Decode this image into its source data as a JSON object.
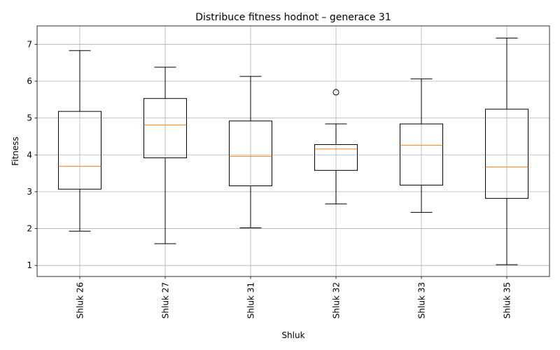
{
  "chart_data": {
    "type": "box",
    "title": "Distribuce fitness hodnot – generace 31",
    "xlabel": "Shluk",
    "ylabel": "Fitness",
    "ylim": [
      0.7,
      7.5
    ],
    "yticks": [
      1,
      2,
      3,
      4,
      5,
      6,
      7
    ],
    "grid": true,
    "categories": [
      "Shluk 26",
      "Shluk 27",
      "Shluk 31",
      "Shluk 32",
      "Shluk 33",
      "Shluk 35"
    ],
    "boxes": [
      {
        "whisker_low": 1.93,
        "q1": 3.07,
        "median": 3.69,
        "q3": 5.18,
        "whisker_high": 6.83,
        "outliers": []
      },
      {
        "whisker_low": 1.59,
        "q1": 3.92,
        "median": 4.81,
        "q3": 5.53,
        "whisker_high": 6.38,
        "outliers": []
      },
      {
        "whisker_low": 2.02,
        "q1": 3.16,
        "median": 3.96,
        "q3": 4.92,
        "whisker_high": 6.13,
        "outliers": []
      },
      {
        "whisker_low": 2.67,
        "q1": 3.58,
        "median": 4.16,
        "q3": 4.28,
        "whisker_high": 4.84,
        "outliers": [
          5.7
        ]
      },
      {
        "whisker_low": 2.44,
        "q1": 3.18,
        "median": 4.26,
        "q3": 4.84,
        "whisker_high": 6.06,
        "outliers": []
      },
      {
        "whisker_low": 1.02,
        "q1": 2.82,
        "median": 3.67,
        "q3": 5.24,
        "whisker_high": 7.17,
        "outliers": []
      }
    ],
    "colors": {
      "box": "#000000",
      "median": "#ff7f0e",
      "grid": "#b0b0b0"
    }
  }
}
